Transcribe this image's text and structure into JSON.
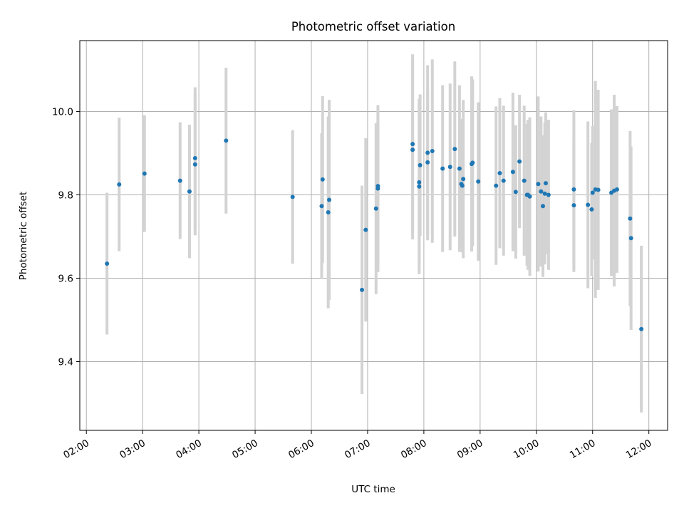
{
  "chart_data": {
    "type": "scatter",
    "title": "Photometric offset variation",
    "xlabel": "UTC time",
    "ylabel": "Photometric offset",
    "x_ticks": [
      "02:00",
      "03:00",
      "04:00",
      "05:00",
      "06:00",
      "07:00",
      "08:00",
      "09:00",
      "10:00",
      "11:00",
      "12:00"
    ],
    "y_ticks": [
      "9.4",
      "9.6",
      "9.8",
      "10.0"
    ],
    "xlim": [
      "01:53",
      "12:20"
    ],
    "ylim": [
      9.235,
      10.17
    ],
    "grid": true,
    "colors": {
      "points": "#1f77b4",
      "error_bars": "#d3d3d3"
    },
    "series": [
      {
        "x": [
          "02:22",
          "02:35",
          "03:02",
          "03:40",
          "03:50",
          "03:56",
          "03:56",
          "04:29",
          "05:40",
          "06:11",
          "06:12",
          "06:18",
          "06:19",
          "06:54",
          "06:58",
          "07:09",
          "07:11",
          "07:11",
          "07:48",
          "07:48",
          "07:55",
          "07:55",
          "07:56",
          "08:04",
          "08:04",
          "08:09",
          "08:20",
          "08:28",
          "08:33",
          "08:38",
          "08:40",
          "08:41",
          "08:42",
          "08:51",
          "08:52",
          "08:58",
          "09:17",
          "09:21",
          "09:25",
          "09:35",
          "09:38",
          "09:42",
          "09:47",
          "09:50",
          "09:51",
          "09:53",
          "10:02",
          "10:05",
          "10:07",
          "10:09",
          "10:10",
          "10:13",
          "10:40",
          "10:40",
          "10:55",
          "10:59",
          "11:00",
          "11:03",
          "11:06",
          "11:20",
          "11:23",
          "11:26",
          "11:40",
          "11:41",
          "11:52"
        ],
        "y": [
          9.635,
          9.825,
          9.851,
          9.834,
          9.808,
          9.873,
          9.888,
          9.93,
          9.795,
          9.773,
          9.837,
          9.758,
          9.788,
          9.572,
          9.716,
          9.767,
          9.815,
          9.821,
          9.908,
          9.922,
          9.82,
          9.83,
          9.871,
          9.878,
          9.901,
          9.905,
          9.863,
          9.867,
          9.91,
          9.863,
          9.826,
          9.822,
          9.838,
          9.874,
          9.877,
          9.832,
          9.822,
          9.852,
          9.834,
          9.855,
          9.807,
          9.88,
          9.834,
          9.8,
          9.8,
          9.796,
          9.826,
          9.808,
          9.773,
          9.803,
          9.828,
          9.8,
          9.813,
          9.775,
          9.776,
          9.765,
          9.805,
          9.813,
          9.812,
          9.805,
          9.81,
          9.813,
          9.743,
          9.696,
          9.478
        ],
        "err": [
          0.17,
          0.16,
          0.14,
          0.14,
          0.16,
          0.17,
          0.17,
          0.175,
          0.16,
          0.175,
          0.2,
          0.23,
          0.24,
          0.25,
          0.22,
          0.205,
          0.2,
          0.18,
          0.215,
          0.215,
          0.21,
          0.2,
          0.17,
          0.175,
          0.21,
          0.22,
          0.2,
          0.2,
          0.21,
          0.2,
          0.15,
          0.16,
          0.19,
          0.21,
          0.2,
          0.19,
          0.19,
          0.18,
          0.18,
          0.19,
          0.16,
          0.16,
          0.18,
          0.17,
          0.18,
          0.19,
          0.21,
          0.18,
          0.17,
          0.17,
          0.17,
          0.18,
          0.19,
          0.16,
          0.2,
          0.16,
          0.16,
          0.26,
          0.24,
          0.2,
          0.23,
          0.2,
          0.21,
          0.22,
          0.2
        ]
      }
    ]
  }
}
